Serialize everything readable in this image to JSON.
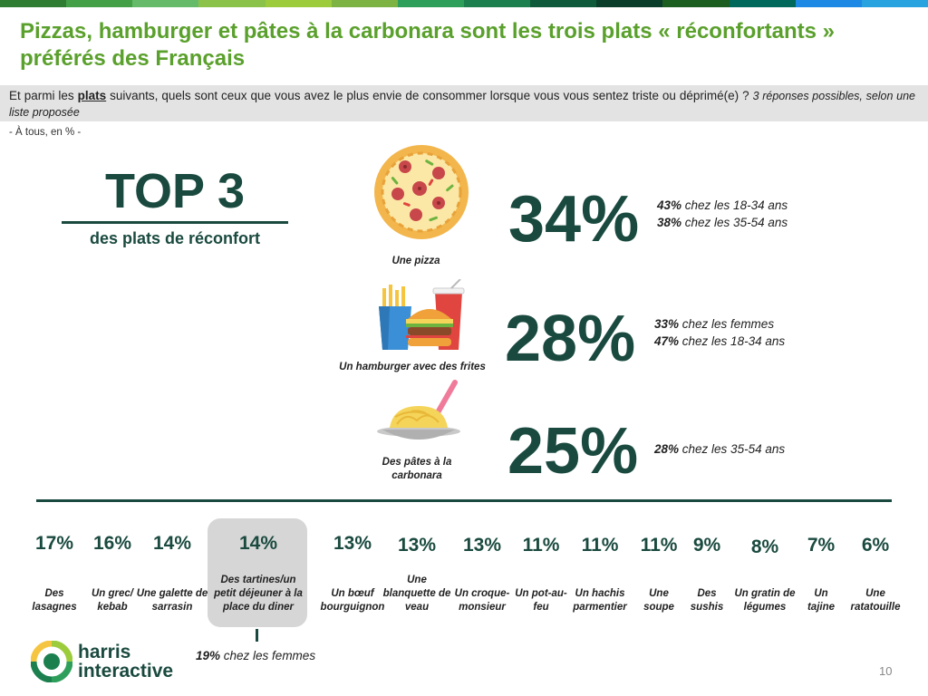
{
  "header": {
    "colors": [
      "#2e7d32",
      "#43a047",
      "#66bb6a",
      "#8bc34a",
      "#9ccc3c",
      "#7cb342",
      "#2e9e5b",
      "#1b7f4e",
      "#0f5a3b",
      "#0b3d2b",
      "#1b5e20",
      "#00695c",
      "#1e88e5",
      "#29a3e0"
    ],
    "title": "Pizzas, hamburger et pâtes à la carbonara sont les trois plats « réconfortants » préférés des Français"
  },
  "question": {
    "part1": "Et parmi les ",
    "highlight": "plats",
    "part2": " suivants, quels sont ceux que vous avez le plus envie de consommer lorsque vous vous sentez triste ou déprimé(e) ? ",
    "note": "3 réponses possibles, selon une liste proposée"
  },
  "base": "- À tous, en % -",
  "top3": {
    "title": "TOP 3",
    "subtitle": "des plats de réconfort"
  },
  "chart_data": {
    "type": "bar",
    "unit": "%",
    "categories": [
      "Une pizza",
      "Un hamburger avec des frites",
      "Des pâtes à la carbonara",
      "Des lasagnes",
      "Un grec/ kebab",
      "Une galette de sarrasin",
      "Des tartines/un petit déjeuner à la place du diner",
      "Un bœuf bourguignon",
      "Une blanquette de veau",
      "Un croque-monsieur",
      "Un pot-au-feu",
      "Un hachis parmentier",
      "Une soupe",
      "Des sushis",
      "Un gratin de légumes",
      "Un tajine",
      "Une ratatouille"
    ],
    "values": [
      34,
      28,
      25,
      17,
      16,
      14,
      14,
      13,
      13,
      13,
      11,
      11,
      11,
      9,
      8,
      7,
      6
    ],
    "top3": [
      {
        "label": "Une pizza",
        "value_text": "34%",
        "icon": "pizza-icon",
        "details": [
          {
            "pct": "43%",
            "text": " chez les 18-34 ans"
          },
          {
            "pct": "38%",
            "text": " chez les 35-54 ans"
          }
        ]
      },
      {
        "label": "Un hamburger avec des frites",
        "value_text": "28%",
        "icon": "burger-icon",
        "details": [
          {
            "pct": "33%",
            "text": " chez les femmes"
          },
          {
            "pct": "47%",
            "text": " chez les 18-34 ans"
          }
        ]
      },
      {
        "label": "Des pâtes à la carbonara",
        "value_text": "25%",
        "icon": "pasta-icon",
        "details": [
          {
            "pct": "28%",
            "text": " chez les 35-54 ans"
          }
        ]
      }
    ],
    "others": [
      {
        "label": "Des lasagnes",
        "value_text": "17%"
      },
      {
        "label": "Un grec/ kebab",
        "value_text": "16%"
      },
      {
        "label": "Une galette de sarrasin",
        "value_text": "14%"
      },
      {
        "label": "Des tartines/un petit déjeuner à la place du diner",
        "value_text": "14%",
        "highlighted": true
      },
      {
        "label": "Un bœuf bourguignon",
        "value_text": "13%"
      },
      {
        "label": "Une blanquette de veau",
        "value_text": "13%"
      },
      {
        "label": "Un croque-monsieur",
        "value_text": "13%"
      },
      {
        "label": "Un pot-au-feu",
        "value_text": "11%"
      },
      {
        "label": "Un hachis parmentier",
        "value_text": "11%"
      },
      {
        "label": "Une soupe",
        "value_text": "11%"
      },
      {
        "label": "Des sushis",
        "value_text": "9%"
      },
      {
        "label": "Un gratin de légumes",
        "value_text": "8%"
      },
      {
        "label": "Un tajine",
        "value_text": "7%"
      },
      {
        "label": "Une ratatouille",
        "value_text": "6%"
      }
    ],
    "annotation": {
      "pct": "19%",
      "text": " chez les femmes"
    }
  },
  "footer": {
    "logo_line1": "harris",
    "logo_line2": "interactive",
    "page_number": "10"
  }
}
